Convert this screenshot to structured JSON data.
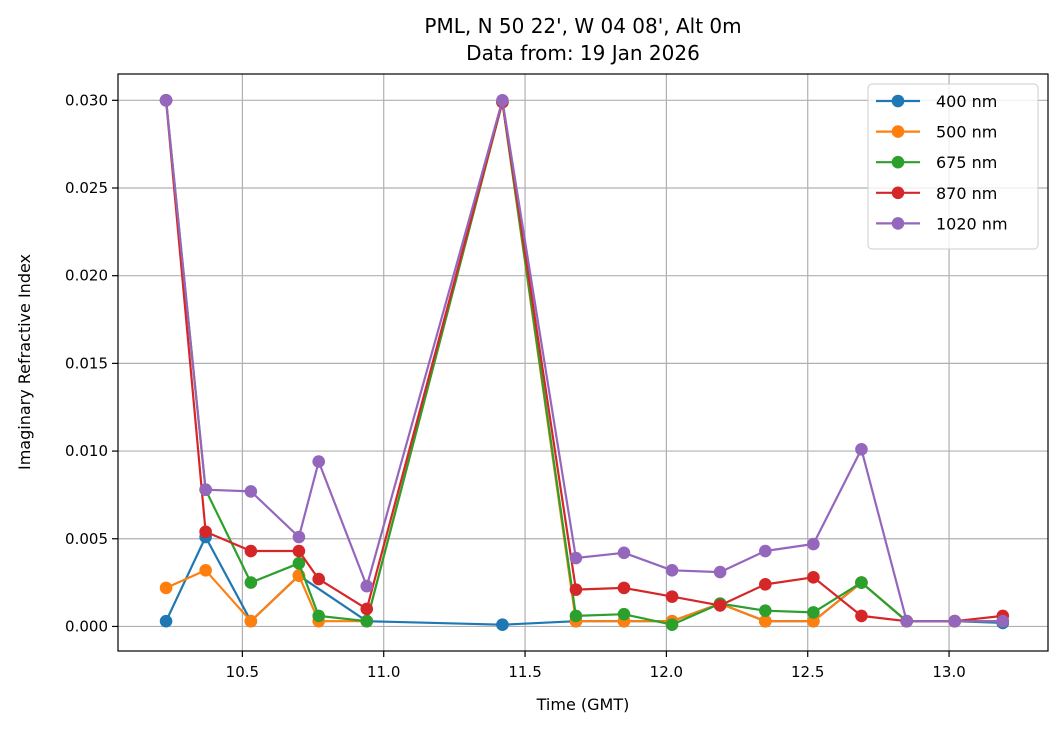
{
  "chart_data": {
    "type": "line",
    "title": "PML, N 50 22', W 04 08', Alt 0m",
    "subtitle": "Data from: 19 Jan 2026",
    "xlabel": "Time (GMT)",
    "ylabel": "Imaginary Refractive Index",
    "xlim": [
      10.06,
      13.35
    ],
    "ylim": [
      -0.0014,
      0.0315
    ],
    "xticks": [
      10.5,
      11.0,
      11.5,
      12.0,
      12.5,
      13.0
    ],
    "xtick_labels": [
      "10.5",
      "11.0",
      "11.5",
      "12.0",
      "12.5",
      "13.0"
    ],
    "yticks": [
      0.0,
      0.005,
      0.01,
      0.015,
      0.02,
      0.025,
      0.03
    ],
    "ytick_labels": [
      "0.000",
      "0.005",
      "0.010",
      "0.015",
      "0.020",
      "0.025",
      "0.030"
    ],
    "grid": true,
    "legend_position": "top-right",
    "series": [
      {
        "name": "400 nm",
        "color": "#1f77b4",
        "x": [
          10.23,
          10.37,
          10.53,
          10.7,
          10.94,
          11.42,
          11.68,
          11.85,
          12.02,
          12.19,
          12.35,
          12.52,
          12.69,
          12.85,
          13.02,
          13.19
        ],
        "y": [
          0.0003,
          0.0051,
          0.0003,
          0.0029,
          0.0003,
          0.0001,
          0.0003,
          0.0003,
          0.0003,
          0.0013,
          0.0003,
          0.0003,
          0.0025,
          0.0003,
          0.0003,
          0.0002
        ]
      },
      {
        "name": "500 nm",
        "color": "#ff7f0e",
        "x": [
          10.23,
          10.37,
          10.53,
          10.7,
          10.77,
          10.94,
          11.42,
          11.68,
          11.85,
          12.02,
          12.19,
          12.35,
          12.52,
          12.69,
          12.85,
          13.02,
          13.19
        ],
        "y": [
          0.0022,
          0.0032,
          0.0003,
          0.0029,
          0.0003,
          0.0003,
          0.0299,
          0.0003,
          0.0003,
          0.0003,
          0.0013,
          0.0003,
          0.0003,
          0.0025,
          0.0003,
          0.0003,
          0.0003
        ]
      },
      {
        "name": "675 nm",
        "color": "#2ca02c",
        "x": [
          10.23,
          10.37,
          10.53,
          10.7,
          10.77,
          10.94,
          11.42,
          11.68,
          11.85,
          12.02,
          12.19,
          12.35,
          12.52,
          12.69,
          12.85,
          13.02,
          13.19
        ],
        "y": [
          0.03,
          0.0078,
          0.0025,
          0.0036,
          0.0006,
          0.0003,
          0.0299,
          0.0006,
          0.0007,
          0.0001,
          0.0013,
          0.0009,
          0.0008,
          0.0025,
          0.0003,
          0.0003,
          0.0003
        ]
      },
      {
        "name": "870 nm",
        "color": "#d62728",
        "x": [
          10.23,
          10.37,
          10.53,
          10.7,
          10.77,
          10.94,
          11.42,
          11.68,
          11.85,
          12.02,
          12.19,
          12.35,
          12.52,
          12.69,
          12.85,
          13.02,
          13.19
        ],
        "y": [
          0.03,
          0.0054,
          0.0043,
          0.0043,
          0.0027,
          0.001,
          0.0299,
          0.0021,
          0.0022,
          0.0017,
          0.0012,
          0.0024,
          0.0028,
          0.0006,
          0.0003,
          0.0003,
          0.0006
        ]
      },
      {
        "name": "1020 nm",
        "color": "#9467bd",
        "x": [
          10.23,
          10.37,
          10.53,
          10.7,
          10.77,
          10.94,
          11.42,
          11.68,
          11.85,
          12.02,
          12.19,
          12.35,
          12.52,
          12.69,
          12.85,
          13.02,
          13.19
        ],
        "y": [
          0.03,
          0.0078,
          0.0077,
          0.0051,
          0.0094,
          0.0023,
          0.03,
          0.0039,
          0.0042,
          0.0032,
          0.0031,
          0.0043,
          0.0047,
          0.0101,
          0.0003,
          0.0003,
          0.0003
        ]
      }
    ]
  }
}
